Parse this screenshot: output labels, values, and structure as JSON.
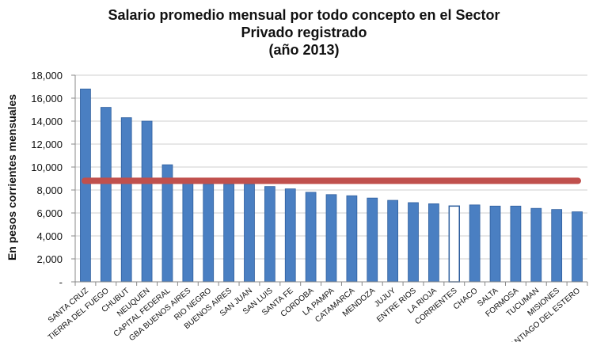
{
  "chart_data": {
    "type": "bar",
    "title": "Salario promedio mensual por todo concepto en el Sector",
    "subtitle_line2": "Privado registrado",
    "subtitle_line3": "(año 2013)",
    "ylabel": "En pesos corrientes mensuales",
    "xlabel": "",
    "ylim": [
      0,
      18000
    ],
    "yticks": [
      0,
      2000,
      4000,
      6000,
      8000,
      10000,
      12000,
      14000,
      16000,
      18000
    ],
    "ytick_labels": [
      "-",
      "2,000",
      "4,000",
      "6,000",
      "8,000",
      "10,000",
      "12,000",
      "14,000",
      "16,000",
      "18,000"
    ],
    "grid": true,
    "categories": [
      "SANTA CRUZ",
      "TIERRA DEL FUEGO",
      "CHUBUT",
      "NEUQUEN",
      "CAPITAL FEDERAL",
      "GBA BUENOS AIRES",
      "RIO NEGRO",
      "BUENOS AIRES",
      "SAN JUAN",
      "SAN LUIS",
      "SANTA FE",
      "CORDOBA",
      "LA PAMPA",
      "CATAMARCA",
      "MENDOZA",
      "JUJUY",
      "ENTRE RIOS",
      "LA RIOJA",
      "CORRIENTES",
      "CHACO",
      "SALTA",
      "FORMOSA",
      "TUCUMAN",
      "MISIONES",
      "SANTIAGO DEL ESTERO"
    ],
    "values": [
      16800,
      15200,
      14300,
      14000,
      10200,
      8700,
      8500,
      8500,
      8500,
      8300,
      8100,
      7800,
      7600,
      7500,
      7300,
      7100,
      6900,
      6800,
      6600,
      6700,
      6600,
      6600,
      6400,
      6300,
      6100
    ],
    "highlight_index": 18,
    "reference_line": 8800,
    "colors": {
      "bar": "#4a7fc2",
      "bar_dark": "#2f5f9e",
      "highlight_fill": "#ffffff",
      "reference_line": "#c0504d",
      "grid": "#cfcfcf"
    }
  }
}
